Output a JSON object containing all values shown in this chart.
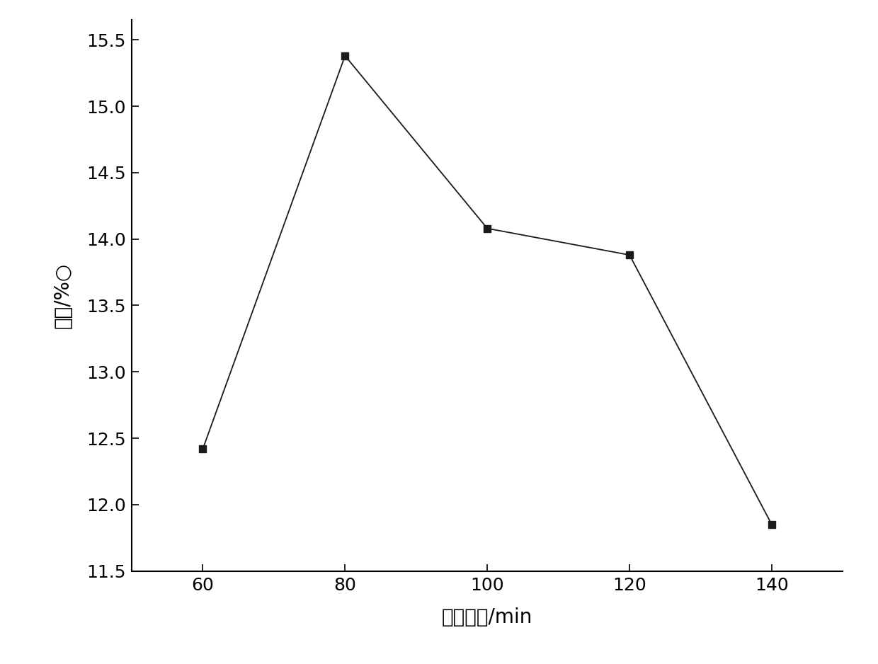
{
  "x": [
    60,
    80,
    100,
    120,
    140
  ],
  "y": [
    12.42,
    15.38,
    14.08,
    13.88,
    11.85
  ],
  "xlabel": "反应时间/min",
  "ylabel": "产率/%○",
  "xlim": [
    50,
    150
  ],
  "ylim": [
    11.5,
    15.65
  ],
  "yticks": [
    11.5,
    12.0,
    12.5,
    13.0,
    13.5,
    14.0,
    14.5,
    15.0,
    15.5
  ],
  "xticks": [
    60,
    80,
    100,
    120,
    140
  ],
  "line_color": "#1a1a1a",
  "marker": "s",
  "marker_size": 7,
  "marker_color": "#1a1a1a",
  "line_width": 1.3,
  "background_color": "#ffffff",
  "tick_fontsize": 18,
  "label_fontsize": 20
}
